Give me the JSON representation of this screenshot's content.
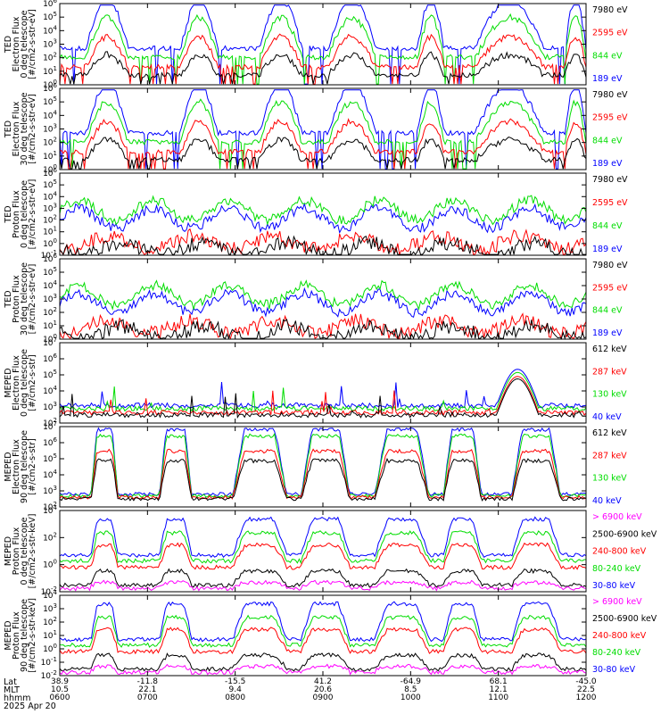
{
  "chart_data": [
    {
      "type": "line",
      "ylabel": [
        "TED",
        "Electron Flux",
        "0 deg telescope",
        "[#/cm2-s-str-eV]"
      ],
      "yticks": [
        "10^0",
        "10^1",
        "10^2",
        "10^3",
        "10^4",
        "10^5",
        "10^6"
      ],
      "series": [
        {
          "name": "7980 eV",
          "color": "#000000"
        },
        {
          "name": "2595 eV",
          "color": "#ff0000"
        },
        {
          "name": "844 eV",
          "color": "#00dd00"
        },
        {
          "name": "189 eV",
          "color": "#0000ff"
        }
      ]
    },
    {
      "type": "line",
      "ylabel": [
        "TED",
        "Electron Flux",
        "30 deg telescope",
        "[#/cm2-s-str-eV]"
      ],
      "yticks": [
        "10^0",
        "10^1",
        "10^2",
        "10^3",
        "10^4",
        "10^5",
        "10^6"
      ],
      "series": [
        {
          "name": "7980 eV",
          "color": "#000000"
        },
        {
          "name": "2595 eV",
          "color": "#ff0000"
        },
        {
          "name": "844 eV",
          "color": "#00dd00"
        },
        {
          "name": "189 eV",
          "color": "#0000ff"
        }
      ]
    },
    {
      "type": "line",
      "ylabel": [
        "TED",
        "Proton Flux",
        "0 deg telescope",
        "[#/cm2-s-str-eV]"
      ],
      "yticks": [
        "10^-1",
        "10^0",
        "10^1",
        "10^2",
        "10^3",
        "10^4",
        "10^5",
        "10^6"
      ],
      "series": [
        {
          "name": "7980 eV",
          "color": "#000000"
        },
        {
          "name": "2595 eV",
          "color": "#ff0000"
        },
        {
          "name": "844 eV",
          "color": "#00dd00"
        },
        {
          "name": "189 eV",
          "color": "#0000ff"
        }
      ]
    },
    {
      "type": "line",
      "ylabel": [
        "TED",
        "Proton Flux",
        "30 deg telescope",
        "[#/cm2-s-str-eV]"
      ],
      "yticks": [
        "10^0",
        "10^1",
        "10^2",
        "10^3",
        "10^4",
        "10^5",
        "10^6"
      ],
      "series": [
        {
          "name": "7980 eV",
          "color": "#000000"
        },
        {
          "name": "2595 eV",
          "color": "#ff0000"
        },
        {
          "name": "844 eV",
          "color": "#00dd00"
        },
        {
          "name": "189 eV",
          "color": "#0000ff"
        }
      ]
    },
    {
      "type": "line",
      "ylabel": [
        "MEPED",
        "Electron Flux",
        "0 deg telescope",
        "[#/cm2-s-str]"
      ],
      "yticks": [
        "10^2",
        "10^3",
        "10^4",
        "10^5",
        "10^6",
        "10^7"
      ],
      "series": [
        {
          "name": "612 keV",
          "color": "#000000"
        },
        {
          "name": "287 keV",
          "color": "#ff0000"
        },
        {
          "name": "130 keV",
          "color": "#00dd00"
        },
        {
          "name": "40 keV",
          "color": "#0000ff"
        }
      ]
    },
    {
      "type": "line",
      "ylabel": [
        "MEPED",
        "Electron Flux",
        "90 deg telescope",
        "[#/cm2-s-str]"
      ],
      "yticks": [
        "10^2",
        "10^3",
        "10^4",
        "10^5",
        "10^6",
        "10^7"
      ],
      "series": [
        {
          "name": "612 keV",
          "color": "#000000"
        },
        {
          "name": "287 keV",
          "color": "#ff0000"
        },
        {
          "name": "130 keV",
          "color": "#00dd00"
        },
        {
          "name": "40 keV",
          "color": "#0000ff"
        }
      ]
    },
    {
      "type": "line",
      "ylabel": [
        "MEPED",
        "Proton Flux",
        "0 deg telescope",
        "[#/cm2-s-str-keV]"
      ],
      "yticks": [
        "10^-2",
        "10^0",
        "10^2",
        "10^4"
      ],
      "series": [
        {
          "name": "> 6900 keV",
          "color": "#ff00ff"
        },
        {
          "name": "2500-6900 keV",
          "color": "#000000"
        },
        {
          "name": "240-800 keV",
          "color": "#ff0000"
        },
        {
          "name": "80-240 keV",
          "color": "#00dd00"
        },
        {
          "name": "30-80 keV",
          "color": "#0000ff"
        }
      ]
    },
    {
      "type": "line",
      "ylabel": [
        "MEPED",
        "Proton Flux",
        "90 deg telescope",
        "[#/cm2-s-str-keV]"
      ],
      "yticks": [
        "10^-2",
        "10^-1",
        "10^0",
        "10^1",
        "10^2",
        "10^3",
        "10^4"
      ],
      "series": [
        {
          "name": "> 6900 keV",
          "color": "#ff00ff"
        },
        {
          "name": "2500-6900 keV",
          "color": "#000000"
        },
        {
          "name": "240-800 keV",
          "color": "#ff0000"
        },
        {
          "name": "80-240 keV",
          "color": "#00dd00"
        },
        {
          "name": "30-80 keV",
          "color": "#0000ff"
        }
      ]
    }
  ],
  "x_axis": {
    "row_labels": [
      "Lat",
      "MLT",
      "hhmm",
      "2025 Apr 20"
    ],
    "ticks": [
      {
        "lat": "38.9",
        "mlt": "10.5",
        "time": "0600"
      },
      {
        "lat": "-11.8",
        "mlt": "22.1",
        "time": "0700"
      },
      {
        "lat": "-15.5",
        "mlt": "9.4",
        "time": "0800"
      },
      {
        "lat": "41.2",
        "mlt": "20.6",
        "time": "0900"
      },
      {
        "lat": "-64.9",
        "mlt": "8.5",
        "time": "1000"
      },
      {
        "lat": "68.1",
        "mlt": "12.1",
        "time": "1100"
      },
      {
        "lat": "-45.0",
        "mlt": "22.5",
        "time": "1200"
      }
    ]
  }
}
